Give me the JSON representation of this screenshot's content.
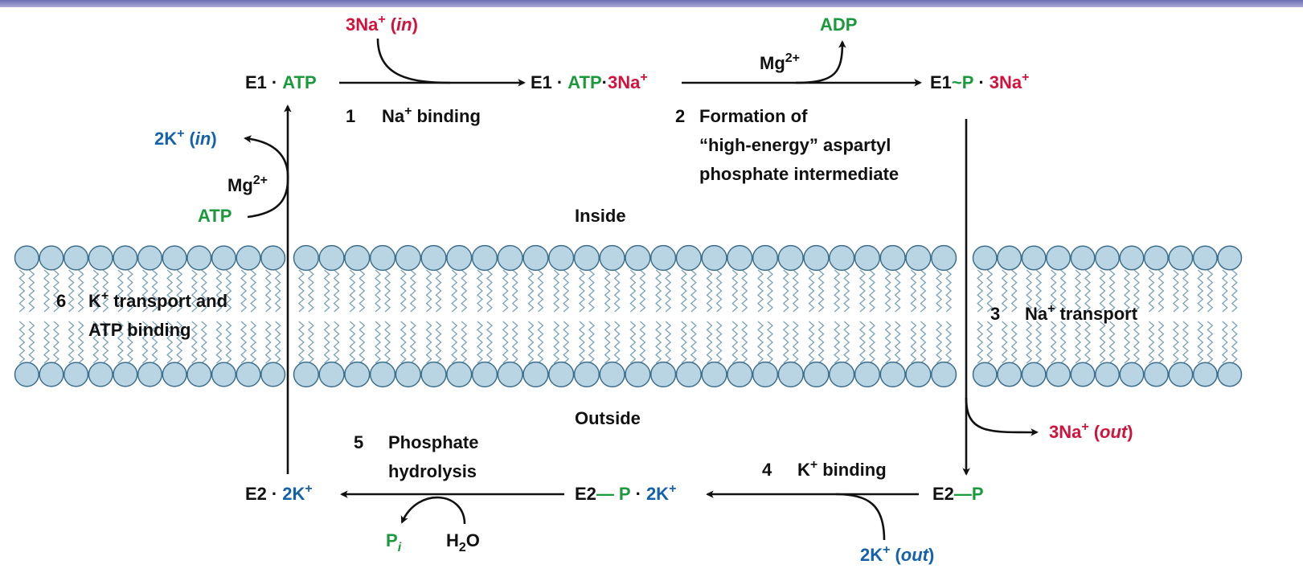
{
  "top_in": [
    "3Na",
    "+",
    "(",
    "in",
    ")"
  ],
  "states": {
    "e1_atp": [
      "E1",
      "·",
      "ATP"
    ],
    "e1_atp_na": [
      "E1",
      "·",
      "ATP",
      "·",
      "3Na",
      "+"
    ],
    "e1_p_na": [
      "E1",
      "~",
      "P",
      "·",
      "3Na",
      "+"
    ],
    "e2_p": [
      "E2",
      "—",
      "P"
    ],
    "e2_p_k": [
      "E2",
      "—",
      "P",
      "·",
      "2K",
      "+"
    ],
    "e2_k": [
      "E2",
      "·",
      "2K",
      "+"
    ]
  },
  "reagents": {
    "adp": [
      "ADP"
    ],
    "mg_top": [
      "Mg",
      "2+"
    ],
    "na_out": [
      "3Na",
      "+",
      "(",
      "out",
      ")"
    ],
    "k_out": [
      "2K",
      "+",
      "(",
      "out",
      ")"
    ],
    "k_in": [
      "2K",
      "+",
      "(",
      "in",
      ")"
    ],
    "mg_left": [
      "Mg",
      "2+"
    ],
    "atp_left": [
      "ATP"
    ],
    "pi": [
      "P",
      "i"
    ],
    "h2o": [
      "H",
      "2",
      "O"
    ]
  },
  "steps": [
    {
      "number": "1",
      "lines": [
        [
          "Na",
          "+",
          "binding"
        ]
      ]
    },
    {
      "number": "2",
      "lines": [
        [
          "Formation of"
        ],
        [
          "“high-energy”  aspartyl"
        ],
        [
          "phosphate intermediate"
        ]
      ]
    },
    {
      "number": "3",
      "lines": [
        [
          "Na",
          "+",
          "transport"
        ]
      ]
    },
    {
      "number": "4",
      "lines": [
        [
          "K",
          "+",
          "binding"
        ]
      ]
    },
    {
      "number": "5",
      "lines": [
        [
          "Phosphate"
        ],
        [
          "hydrolysis"
        ]
      ]
    },
    {
      "number": "6",
      "lines": [
        [
          "K",
          "+",
          "transport and"
        ],
        [
          "ATP binding"
        ]
      ]
    }
  ],
  "regions": {
    "inside": [
      "Inside"
    ],
    "outside": [
      "Outside"
    ]
  }
}
